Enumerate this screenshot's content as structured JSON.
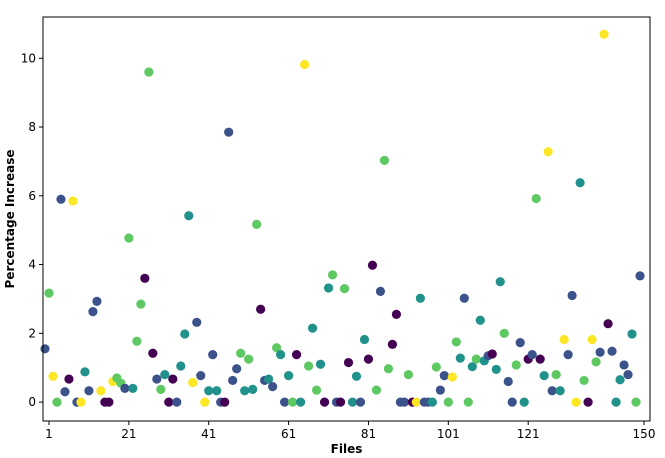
{
  "chart_data": {
    "type": "scatter",
    "title": "",
    "xlabel": "Files",
    "ylabel": "Percentage Increase",
    "xlim": [
      -0.5,
      151.5
    ],
    "ylim": [
      -0.55,
      11.2
    ],
    "xticks": [
      1,
      21,
      41,
      61,
      81,
      101,
      121,
      150
    ],
    "yticks": [
      0,
      2,
      4,
      6,
      8,
      10
    ],
    "grid": false,
    "legend": "none",
    "colormap": "viridis",
    "palette": [
      "#440154",
      "#3b528b",
      "#21918c",
      "#5ec962",
      "#fde725"
    ],
    "points": [
      {
        "x": 0,
        "y": 1.55,
        "c": "#3b528b"
      },
      {
        "x": 1,
        "y": 3.17,
        "c": "#5ec962"
      },
      {
        "x": 2,
        "y": 0.75,
        "c": "#fde725"
      },
      {
        "x": 3,
        "y": 0.0,
        "c": "#5ec962"
      },
      {
        "x": 4,
        "y": 5.9,
        "c": "#3b528b"
      },
      {
        "x": 5,
        "y": 0.3,
        "c": "#3b528b"
      },
      {
        "x": 6,
        "y": 0.67,
        "c": "#440154"
      },
      {
        "x": 7,
        "y": 5.85,
        "c": "#fde725"
      },
      {
        "x": 8,
        "y": 0.0,
        "c": "#3b528b"
      },
      {
        "x": 9,
        "y": 0.0,
        "c": "#fde725"
      },
      {
        "x": 10,
        "y": 0.88,
        "c": "#21918c"
      },
      {
        "x": 11,
        "y": 0.33,
        "c": "#3b528b"
      },
      {
        "x": 12,
        "y": 2.63,
        "c": "#3b528b"
      },
      {
        "x": 13,
        "y": 2.93,
        "c": "#3b528b"
      },
      {
        "x": 14,
        "y": 0.33,
        "c": "#fde725"
      },
      {
        "x": 15,
        "y": 0.0,
        "c": "#440154"
      },
      {
        "x": 16,
        "y": 0.0,
        "c": "#440154"
      },
      {
        "x": 17,
        "y": 0.6,
        "c": "#fde725"
      },
      {
        "x": 18,
        "y": 0.7,
        "c": "#5ec962"
      },
      {
        "x": 19,
        "y": 0.55,
        "c": "#5ec962"
      },
      {
        "x": 20,
        "y": 0.4,
        "c": "#3b528b"
      },
      {
        "x": 21,
        "y": 4.77,
        "c": "#5ec962"
      },
      {
        "x": 22,
        "y": 0.4,
        "c": "#21918c"
      },
      {
        "x": 23,
        "y": 1.77,
        "c": "#5ec962"
      },
      {
        "x": 24,
        "y": 2.85,
        "c": "#5ec962"
      },
      {
        "x": 25,
        "y": 3.6,
        "c": "#440154"
      },
      {
        "x": 26,
        "y": 9.6,
        "c": "#5ec962"
      },
      {
        "x": 27,
        "y": 1.42,
        "c": "#440154"
      },
      {
        "x": 28,
        "y": 0.67,
        "c": "#3b528b"
      },
      {
        "x": 29,
        "y": 0.37,
        "c": "#5ec962"
      },
      {
        "x": 30,
        "y": 0.8,
        "c": "#21918c"
      },
      {
        "x": 31,
        "y": 0.0,
        "c": "#440154"
      },
      {
        "x": 32,
        "y": 0.67,
        "c": "#440154"
      },
      {
        "x": 33,
        "y": 0.0,
        "c": "#3b528b"
      },
      {
        "x": 34,
        "y": 1.05,
        "c": "#21918c"
      },
      {
        "x": 35,
        "y": 1.98,
        "c": "#21918c"
      },
      {
        "x": 36,
        "y": 5.42,
        "c": "#21918c"
      },
      {
        "x": 37,
        "y": 0.57,
        "c": "#fde725"
      },
      {
        "x": 38,
        "y": 2.32,
        "c": "#3b528b"
      },
      {
        "x": 39,
        "y": 0.77,
        "c": "#3b528b"
      },
      {
        "x": 40,
        "y": 0.0,
        "c": "#fde725"
      },
      {
        "x": 41,
        "y": 0.33,
        "c": "#21918c"
      },
      {
        "x": 42,
        "y": 1.38,
        "c": "#3b528b"
      },
      {
        "x": 43,
        "y": 0.33,
        "c": "#21918c"
      },
      {
        "x": 44,
        "y": 0.0,
        "c": "#3b528b"
      },
      {
        "x": 45,
        "y": 0.0,
        "c": "#440154"
      },
      {
        "x": 46,
        "y": 7.85,
        "c": "#3b528b"
      },
      {
        "x": 47,
        "y": 0.63,
        "c": "#3b528b"
      },
      {
        "x": 48,
        "y": 0.97,
        "c": "#3b528b"
      },
      {
        "x": 49,
        "y": 1.42,
        "c": "#5ec962"
      },
      {
        "x": 50,
        "y": 0.33,
        "c": "#21918c"
      },
      {
        "x": 51,
        "y": 1.25,
        "c": "#5ec962"
      },
      {
        "x": 52,
        "y": 0.37,
        "c": "#21918c"
      },
      {
        "x": 53,
        "y": 5.17,
        "c": "#5ec962"
      },
      {
        "x": 54,
        "y": 2.7,
        "c": "#440154"
      },
      {
        "x": 55,
        "y": 0.63,
        "c": "#3b528b"
      },
      {
        "x": 56,
        "y": 0.67,
        "c": "#21918c"
      },
      {
        "x": 57,
        "y": 0.45,
        "c": "#3b528b"
      },
      {
        "x": 58,
        "y": 1.58,
        "c": "#5ec962"
      },
      {
        "x": 59,
        "y": 1.38,
        "c": "#21918c"
      },
      {
        "x": 60,
        "y": 0.0,
        "c": "#3b528b"
      },
      {
        "x": 61,
        "y": 0.77,
        "c": "#21918c"
      },
      {
        "x": 62,
        "y": 0.0,
        "c": "#5ec962"
      },
      {
        "x": 63,
        "y": 1.38,
        "c": "#440154"
      },
      {
        "x": 64,
        "y": 0.0,
        "c": "#21918c"
      },
      {
        "x": 65,
        "y": 9.82,
        "c": "#fde725"
      },
      {
        "x": 66,
        "y": 1.05,
        "c": "#5ec962"
      },
      {
        "x": 67,
        "y": 2.15,
        "c": "#21918c"
      },
      {
        "x": 68,
        "y": 0.35,
        "c": "#5ec962"
      },
      {
        "x": 69,
        "y": 1.1,
        "c": "#21918c"
      },
      {
        "x": 70,
        "y": 0.0,
        "c": "#440154"
      },
      {
        "x": 71,
        "y": 3.32,
        "c": "#21918c"
      },
      {
        "x": 72,
        "y": 3.7,
        "c": "#5ec962"
      },
      {
        "x": 73,
        "y": 0.0,
        "c": "#3b528b"
      },
      {
        "x": 74,
        "y": 0.0,
        "c": "#440154"
      },
      {
        "x": 75,
        "y": 3.3,
        "c": "#5ec962"
      },
      {
        "x": 76,
        "y": 1.15,
        "c": "#440154"
      },
      {
        "x": 77,
        "y": 0.0,
        "c": "#21918c"
      },
      {
        "x": 78,
        "y": 0.75,
        "c": "#21918c"
      },
      {
        "x": 79,
        "y": 0.0,
        "c": "#3b528b"
      },
      {
        "x": 80,
        "y": 1.82,
        "c": "#21918c"
      },
      {
        "x": 81,
        "y": 1.25,
        "c": "#440154"
      },
      {
        "x": 82,
        "y": 3.98,
        "c": "#440154"
      },
      {
        "x": 83,
        "y": 0.35,
        "c": "#5ec962"
      },
      {
        "x": 84,
        "y": 3.22,
        "c": "#3b528b"
      },
      {
        "x": 85,
        "y": 7.03,
        "c": "#5ec962"
      },
      {
        "x": 86,
        "y": 0.97,
        "c": "#5ec962"
      },
      {
        "x": 87,
        "y": 1.68,
        "c": "#440154"
      },
      {
        "x": 88,
        "y": 2.55,
        "c": "#440154"
      },
      {
        "x": 89,
        "y": 0.0,
        "c": "#3b528b"
      },
      {
        "x": 90,
        "y": 0.0,
        "c": "#3b528b"
      },
      {
        "x": 91,
        "y": 0.8,
        "c": "#5ec962"
      },
      {
        "x": 92,
        "y": 0.0,
        "c": "#440154"
      },
      {
        "x": 93,
        "y": 0.0,
        "c": "#fde725"
      },
      {
        "x": 94,
        "y": 3.02,
        "c": "#21918c"
      },
      {
        "x": 95,
        "y": 0.0,
        "c": "#3b528b"
      },
      {
        "x": 96,
        "y": 0.0,
        "c": "#3b528b"
      },
      {
        "x": 97,
        "y": 0.0,
        "c": "#21918c"
      },
      {
        "x": 98,
        "y": 1.02,
        "c": "#5ec962"
      },
      {
        "x": 99,
        "y": 0.35,
        "c": "#3b528b"
      },
      {
        "x": 100,
        "y": 0.77,
        "c": "#3b528b"
      },
      {
        "x": 101,
        "y": 0.0,
        "c": "#5ec962"
      },
      {
        "x": 102,
        "y": 0.73,
        "c": "#fde725"
      },
      {
        "x": 103,
        "y": 1.75,
        "c": "#5ec962"
      },
      {
        "x": 104,
        "y": 1.28,
        "c": "#21918c"
      },
      {
        "x": 105,
        "y": 3.02,
        "c": "#3b528b"
      },
      {
        "x": 106,
        "y": 0.0,
        "c": "#5ec962"
      },
      {
        "x": 107,
        "y": 1.03,
        "c": "#21918c"
      },
      {
        "x": 108,
        "y": 1.25,
        "c": "#5ec962"
      },
      {
        "x": 109,
        "y": 2.38,
        "c": "#21918c"
      },
      {
        "x": 110,
        "y": 1.2,
        "c": "#21918c"
      },
      {
        "x": 111,
        "y": 1.35,
        "c": "#3b528b"
      },
      {
        "x": 112,
        "y": 1.4,
        "c": "#440154"
      },
      {
        "x": 113,
        "y": 0.95,
        "c": "#21918c"
      },
      {
        "x": 114,
        "y": 3.5,
        "c": "#21918c"
      },
      {
        "x": 115,
        "y": 2.0,
        "c": "#5ec962"
      },
      {
        "x": 116,
        "y": 0.6,
        "c": "#3b528b"
      },
      {
        "x": 117,
        "y": 0.0,
        "c": "#3b528b"
      },
      {
        "x": 118,
        "y": 1.08,
        "c": "#5ec962"
      },
      {
        "x": 119,
        "y": 1.73,
        "c": "#3b528b"
      },
      {
        "x": 120,
        "y": 0.0,
        "c": "#21918c"
      },
      {
        "x": 121,
        "y": 1.25,
        "c": "#440154"
      },
      {
        "x": 122,
        "y": 1.38,
        "c": "#3b528b"
      },
      {
        "x": 123,
        "y": 5.92,
        "c": "#5ec962"
      },
      {
        "x": 124,
        "y": 1.25,
        "c": "#440154"
      },
      {
        "x": 125,
        "y": 0.77,
        "c": "#21918c"
      },
      {
        "x": 126,
        "y": 7.28,
        "c": "#fde725"
      },
      {
        "x": 127,
        "y": 0.33,
        "c": "#3b528b"
      },
      {
        "x": 128,
        "y": 0.8,
        "c": "#5ec962"
      },
      {
        "x": 129,
        "y": 0.33,
        "c": "#21918c"
      },
      {
        "x": 130,
        "y": 1.82,
        "c": "#fde725"
      },
      {
        "x": 131,
        "y": 1.38,
        "c": "#3b528b"
      },
      {
        "x": 132,
        "y": 3.1,
        "c": "#3b528b"
      },
      {
        "x": 133,
        "y": 0.0,
        "c": "#fde725"
      },
      {
        "x": 134,
        "y": 6.38,
        "c": "#21918c"
      },
      {
        "x": 135,
        "y": 0.63,
        "c": "#5ec962"
      },
      {
        "x": 136,
        "y": 0.0,
        "c": "#440154"
      },
      {
        "x": 137,
        "y": 1.82,
        "c": "#fde725"
      },
      {
        "x": 138,
        "y": 1.17,
        "c": "#5ec962"
      },
      {
        "x": 139,
        "y": 1.45,
        "c": "#3b528b"
      },
      {
        "x": 140,
        "y": 10.7,
        "c": "#fde725"
      },
      {
        "x": 141,
        "y": 2.28,
        "c": "#440154"
      },
      {
        "x": 142,
        "y": 1.48,
        "c": "#3b528b"
      },
      {
        "x": 143,
        "y": 0.0,
        "c": "#21918c"
      },
      {
        "x": 144,
        "y": 0.65,
        "c": "#21918c"
      },
      {
        "x": 145,
        "y": 1.08,
        "c": "#3b528b"
      },
      {
        "x": 146,
        "y": 0.8,
        "c": "#3b528b"
      },
      {
        "x": 147,
        "y": 1.98,
        "c": "#21918c"
      },
      {
        "x": 148,
        "y": 0.0,
        "c": "#5ec962"
      },
      {
        "x": 149,
        "y": 3.67,
        "c": "#3b528b"
      }
    ]
  }
}
